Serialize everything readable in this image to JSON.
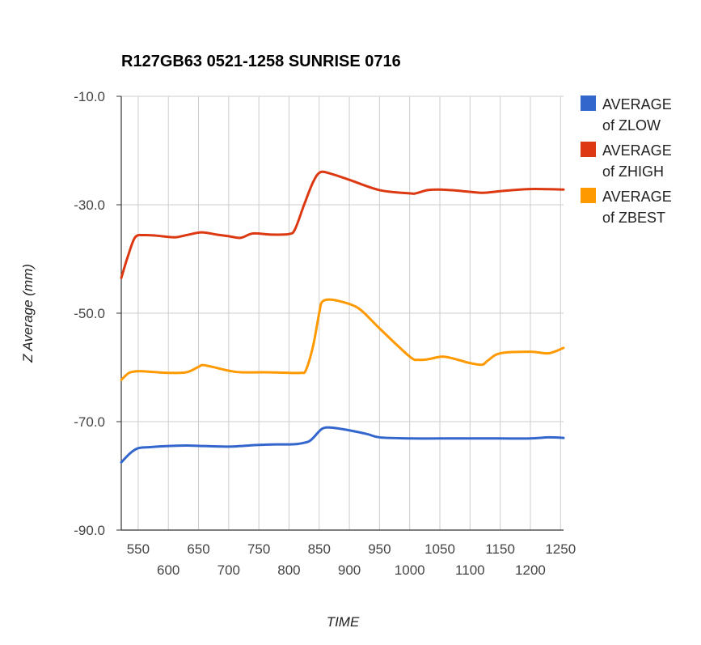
{
  "chart_data": {
    "type": "line",
    "title": "R127GB63 0521-1258 SUNRISE 0716",
    "xlabel": "TIME",
    "ylabel": "Z Average (mm)",
    "xlim": [
      522,
      1255
    ],
    "ylim": [
      -90,
      -10
    ],
    "x_ticks": [
      {
        "value": 550,
        "label": "550"
      },
      {
        "value": 600,
        "label": "600"
      },
      {
        "value": 650,
        "label": "650"
      },
      {
        "value": 700,
        "label": "700"
      },
      {
        "value": 750,
        "label": "750"
      },
      {
        "value": 800,
        "label": "800"
      },
      {
        "value": 850,
        "label": "850"
      },
      {
        "value": 900,
        "label": "900"
      },
      {
        "value": 950,
        "label": "950"
      },
      {
        "value": 1000,
        "label": "1000"
      },
      {
        "value": 1050,
        "label": "1050"
      },
      {
        "value": 1100,
        "label": "1100"
      },
      {
        "value": 1150,
        "label": "1150"
      },
      {
        "value": 1200,
        "label": "1200"
      },
      {
        "value": 1250,
        "label": "1250"
      }
    ],
    "y_ticks": [
      {
        "value": -10,
        "label": "-10.0"
      },
      {
        "value": -30,
        "label": "-30.0"
      },
      {
        "value": -50,
        "label": "-50.0"
      },
      {
        "value": -70,
        "label": "-70.0"
      },
      {
        "value": -90,
        "label": "-90.0"
      }
    ],
    "grid": true,
    "legend_position": "right",
    "series": [
      {
        "name": "AVERAGE of ZLOW",
        "color": "#3366cc",
        "x": [
          522,
          537,
          550,
          570,
          600,
          630,
          660,
          700,
          720,
          750,
          780,
          800,
          815,
          832,
          840,
          855,
          870,
          900,
          930,
          950,
          1000,
          1050,
          1100,
          1150,
          1200,
          1230,
          1255
        ],
        "y": [
          -77.5,
          -75.8,
          -74.9,
          -74.7,
          -74.5,
          -74.4,
          -74.5,
          -74.6,
          -74.5,
          -74.3,
          -74.2,
          -74.2,
          -74.1,
          -73.7,
          -73.0,
          -71.3,
          -71.1,
          -71.6,
          -72.3,
          -72.9,
          -73.1,
          -73.1,
          -73.1,
          -73.1,
          -73.1,
          -72.9,
          -73.0
        ]
      },
      {
        "name": "AVERAGE of ZHIGH",
        "color": "#dc3912",
        "x": [
          522,
          533,
          545,
          560,
          580,
          610,
          630,
          655,
          680,
          700,
          720,
          740,
          770,
          800,
          810,
          825,
          840,
          852,
          870,
          900,
          950,
          1000,
          1010,
          1030,
          1050,
          1080,
          1120,
          1150,
          1200,
          1255
        ],
        "y": [
          -43.5,
          -39.5,
          -36.0,
          -35.6,
          -35.7,
          -36.0,
          -35.6,
          -35.1,
          -35.5,
          -35.8,
          -36.1,
          -35.3,
          -35.5,
          -35.4,
          -34.5,
          -30.0,
          -25.8,
          -24.0,
          -24.3,
          -25.4,
          -27.3,
          -27.9,
          -27.9,
          -27.3,
          -27.2,
          -27.4,
          -27.8,
          -27.5,
          -27.1,
          -27.2
        ]
      },
      {
        "name": "AVERAGE of ZBEST",
        "color": "#ff9900",
        "x": [
          522,
          535,
          550,
          570,
          600,
          630,
          650,
          660,
          700,
          720,
          760,
          800,
          820,
          828,
          840,
          850,
          855,
          870,
          900,
          920,
          950,
          1000,
          1015,
          1030,
          1055,
          1080,
          1100,
          1120,
          1130,
          1150,
          1200,
          1230,
          1255
        ],
        "y": [
          -62.3,
          -61.0,
          -60.7,
          -60.8,
          -61.0,
          -60.9,
          -59.9,
          -59.6,
          -60.6,
          -60.9,
          -60.9,
          -61.0,
          -61.0,
          -60.5,
          -56.0,
          -50.0,
          -47.9,
          -47.5,
          -48.3,
          -49.5,
          -52.8,
          -58.0,
          -58.6,
          -58.5,
          -58.0,
          -58.6,
          -59.2,
          -59.5,
          -58.7,
          -57.4,
          -57.1,
          -57.4,
          -56.4
        ]
      }
    ]
  }
}
